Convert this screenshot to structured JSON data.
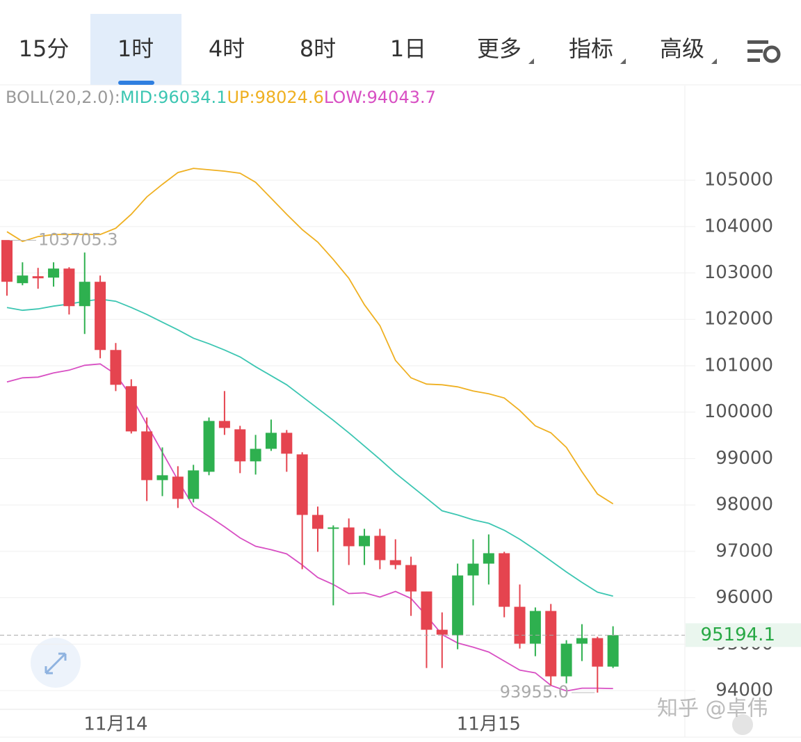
{
  "tabs": [
    "15分",
    "1时",
    "4时",
    "8时",
    "1日",
    "更多",
    "指标",
    "高级"
  ],
  "active_tab": 1,
  "chart_data": {
    "type": "candlestick",
    "categories": [
      null,
      null,
      null,
      null,
      null,
      null,
      null,
      "11月14",
      null,
      null,
      null,
      null,
      null,
      null,
      null,
      null,
      null,
      null,
      null,
      null,
      null,
      null,
      null,
      null,
      null,
      null,
      null,
      null,
      null,
      null,
      null,
      "11月15",
      null,
      null,
      null,
      null,
      null,
      null,
      null,
      null
    ],
    "open": [
      103710,
      102780,
      102930,
      102900,
      103095,
      102285,
      102810,
      101340,
      100560,
      99585,
      98535,
      98610,
      98130,
      98715,
      99810,
      99630,
      98940,
      99210,
      99555,
      99090,
      97785,
      97485,
      97515,
      97110,
      97335,
      96810,
      96705,
      96135,
      95310,
      95190,
      96480,
      96735,
      96960,
      95805,
      95010,
      95715,
      94305,
      95010,
      95130,
      94515
    ],
    "high": [
      103705.3,
      103230,
      103110,
      103230,
      103125,
      103440,
      102945,
      101490,
      100710,
      99885,
      99240,
      98835,
      98865,
      99885,
      100455,
      99705,
      99510,
      99840,
      99615,
      99135,
      97965,
      97560,
      97710,
      97485,
      97485,
      97260,
      96885,
      96135,
      95685,
      96735,
      97260,
      97365,
      96990,
      96285,
      95790,
      95865,
      95085,
      95430,
      95160,
      95385
    ],
    "low": [
      102510,
      102735,
      102660,
      102705,
      102105,
      101685,
      101160,
      100455,
      99540,
      98085,
      98190,
      97935,
      98055,
      98640,
      99510,
      98685,
      98655,
      99165,
      98715,
      96615,
      96990,
      95835,
      96705,
      96705,
      96615,
      96615,
      95610,
      94485,
      94485,
      94890,
      95835,
      96285,
      95580,
      94905,
      94740,
      94110,
      94155,
      94635,
      93955,
      94485
    ],
    "close": [
      102810,
      102945,
      102885,
      103095,
      102285,
      102810,
      101340,
      100590,
      99585,
      98535,
      98640,
      98130,
      98745,
      99810,
      99660,
      98940,
      99210,
      99555,
      99105,
      97785,
      97485,
      97515,
      97110,
      97335,
      96810,
      96705,
      96135,
      95310,
      95205,
      96480,
      96735,
      96960,
      95805,
      95010,
      95715,
      94305,
      95010,
      95130,
      94515,
      95194.1
    ],
    "up_color": "#2eb04f",
    "down_color": "#e5444f",
    "ylim": [
      93595,
      107040
    ],
    "yticks": [
      94000,
      95000,
      96000,
      97000,
      98000,
      99000,
      100000,
      101000,
      102000,
      103000,
      104000,
      105000
    ],
    "grid": true,
    "indicator": {
      "label": "BOLL(20,2.0):",
      "lines": [
        {
          "name": "MID:96034.1",
          "color": "#3cc6b2",
          "values": [
            102255,
            102195,
            102225,
            102285,
            102330,
            102390,
            102435,
            102390,
            102255,
            102105,
            101940,
            101775,
            101595,
            101475,
            101340,
            101190,
            100980,
            100785,
            100590,
            100335,
            100080,
            99825,
            99555,
            99270,
            98985,
            98685,
            98415,
            98145,
            97875,
            97785,
            97680,
            97605,
            97455,
            97260,
            97035,
            96795,
            96555,
            96330,
            96120,
            96034.1
          ]
        },
        {
          "name": "UP:98024.6",
          "color": "#efb021",
          "values": [
            103890,
            103680,
            103785,
            103830,
            103830,
            103830,
            103830,
            103965,
            104265,
            104640,
            104910,
            105165,
            105255,
            105225,
            105195,
            105150,
            104955,
            104610,
            104265,
            103935,
            103665,
            103290,
            102885,
            102315,
            101865,
            101115,
            100740,
            100605,
            100590,
            100545,
            100455,
            100395,
            100305,
            100035,
            99705,
            99555,
            99240,
            98715,
            98235,
            98024.6
          ]
        },
        {
          "name": "LOW:94043.7",
          "color": "#d84fc3",
          "values": [
            100650,
            100740,
            100755,
            100845,
            100905,
            101010,
            101040,
            100815,
            100335,
            99735,
            99135,
            98535,
            97965,
            97755,
            97530,
            97290,
            97110,
            97035,
            96945,
            96705,
            96435,
            96285,
            96090,
            96105,
            96015,
            96135,
            95985,
            95610,
            95205,
            95025,
            94935,
            94830,
            94635,
            94440,
            94380,
            94110,
            93990,
            94050,
            94050,
            94043.7
          ]
        }
      ]
    },
    "high_mark": {
      "value": 103705.3,
      "label": "103705.3"
    },
    "low_mark": {
      "value": 93955,
      "label": "93955.0"
    },
    "last_price": {
      "value": 95194.1,
      "label": "95194.1"
    }
  },
  "watermark": "知乎 @卓伟"
}
